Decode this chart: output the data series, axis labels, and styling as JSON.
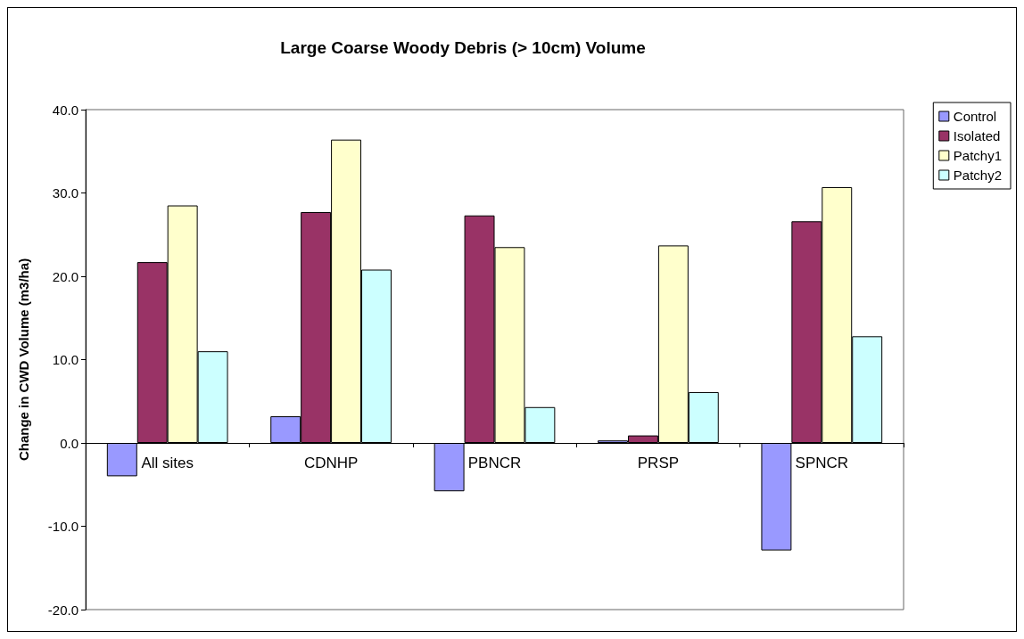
{
  "chart_data": {
    "type": "bar",
    "title": "Large Coarse Woody Debris (> 10cm) Volume",
    "ylabel": "Change in CWD Volume (m3/ha)",
    "categories": [
      "All sites",
      "CDNHP",
      "PBNCR",
      "PRSP",
      "SPNCR"
    ],
    "series": [
      {
        "name": "Control",
        "color": "#9999ff",
        "values": [
          -4.0,
          3.2,
          -5.8,
          0.3,
          -12.9
        ]
      },
      {
        "name": "Isolated",
        "color": "#993366",
        "values": [
          21.7,
          27.7,
          27.3,
          0.9,
          26.6
        ]
      },
      {
        "name": "Patchy1",
        "color": "#ffffcc",
        "values": [
          28.5,
          36.4,
          23.5,
          23.7,
          30.7
        ]
      },
      {
        "name": "Patchy2",
        "color": "#ccffff",
        "values": [
          11.0,
          20.8,
          4.3,
          6.1,
          12.8
        ]
      }
    ],
    "ylim": [
      -20,
      40
    ],
    "yticks": [
      {
        "value": -20,
        "label": "-20.0"
      },
      {
        "value": -10,
        "label": "-10.0"
      },
      {
        "value": 0,
        "label": "0.0"
      },
      {
        "value": 10,
        "label": "10.0"
      },
      {
        "value": 20,
        "label": "20.0"
      },
      {
        "value": 30,
        "label": "30.0"
      },
      {
        "value": 40,
        "label": "40.0"
      }
    ],
    "grid": false,
    "legend": "right"
  }
}
